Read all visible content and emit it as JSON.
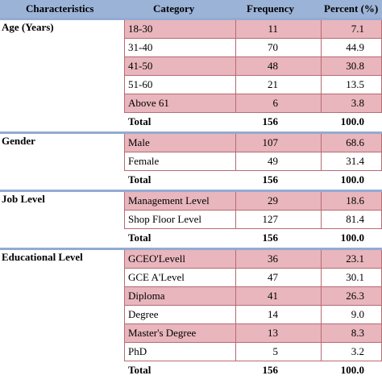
{
  "header": {
    "characteristics": "Characteristics",
    "category": "Category",
    "frequency": "Frequency",
    "percent": "Percent (%)"
  },
  "groups": [
    {
      "name": "Age (Years)",
      "rows": [
        {
          "category": "18-30",
          "frequency": "11",
          "percent": "7.1"
        },
        {
          "category": "31-40",
          "frequency": "70",
          "percent": "44.9"
        },
        {
          "category": "41-50",
          "frequency": "48",
          "percent": "30.8"
        },
        {
          "category": "51-60",
          "frequency": "21",
          "percent": "13.5"
        },
        {
          "category": "Above 61",
          "frequency": "6",
          "percent": "3.8"
        },
        {
          "category": "Total",
          "frequency": "156",
          "percent": "100.0"
        }
      ]
    },
    {
      "name": "Gender",
      "rows": [
        {
          "category": "Male",
          "frequency": "107",
          "percent": "68.6"
        },
        {
          "category": "Female",
          "frequency": "49",
          "percent": "31.4"
        },
        {
          "category": "Total",
          "frequency": "156",
          "percent": "100.0"
        }
      ]
    },
    {
      "name": "Job Level",
      "rows": [
        {
          "category": "Management Level",
          "frequency": "29",
          "percent": "18.6"
        },
        {
          "category": "Shop Floor Level",
          "frequency": "127",
          "percent": "81.4"
        },
        {
          "category": "Total",
          "frequency": "156",
          "percent": "100.0"
        }
      ]
    },
    {
      "name": "Educational Level",
      "rows": [
        {
          "category": "GCEO'Levell",
          "frequency": "36",
          "percent": "23.1"
        },
        {
          "category": "GCE A'Level",
          "frequency": "47",
          "percent": "30.1"
        },
        {
          "category": "Diploma",
          "frequency": "41",
          "percent": "26.3"
        },
        {
          "category": "Degree",
          "frequency": "14",
          "percent": "9.0"
        },
        {
          "category": "Master's Degree",
          "frequency": "13",
          "percent": "8.3"
        },
        {
          "category": "PhD",
          "frequency": "5",
          "percent": "3.2"
        },
        {
          "category": "Total",
          "frequency": "156",
          "percent": "100.0"
        }
      ]
    }
  ],
  "colors": {
    "header_bg": "#9cb3d8",
    "separator": "#93abd2",
    "row_pink": "#e8b6bc",
    "row_white": "#ffffff"
  }
}
